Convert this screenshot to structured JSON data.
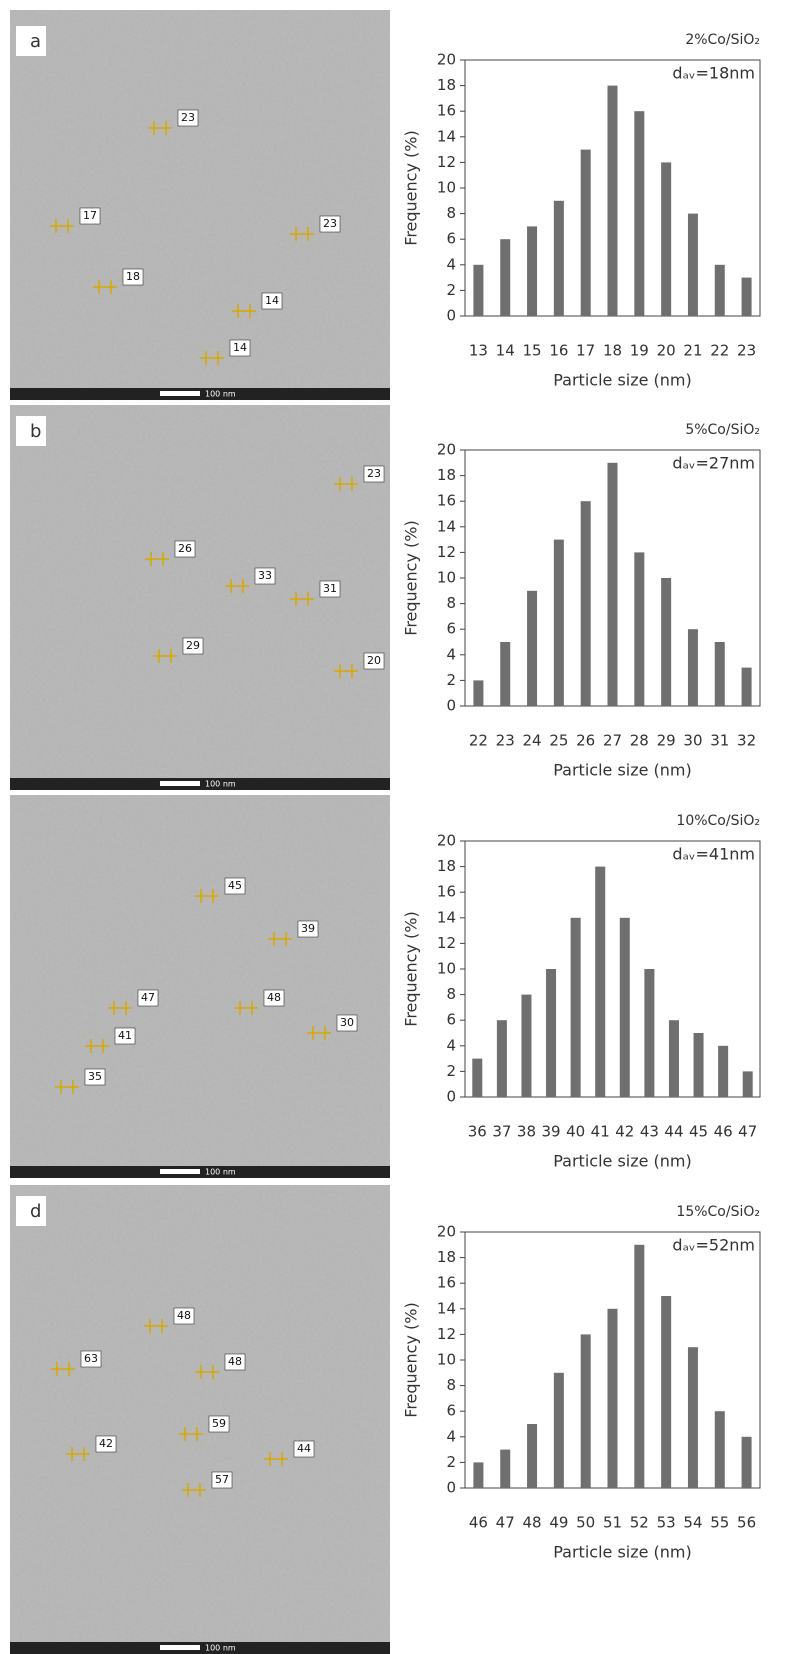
{
  "panels": [
    {
      "letter": "a",
      "scale_bar": "100 nm",
      "particle_labels": [
        23,
        17,
        23,
        18,
        14,
        14
      ]
    },
    {
      "letter": "b",
      "scale_bar": "100 nm",
      "particle_labels": [
        23,
        26,
        33,
        31,
        29,
        20
      ]
    },
    {
      "scale_bar": "100 nm",
      "particle_labels": [
        45,
        39,
        47,
        48,
        41,
        30,
        35
      ]
    },
    {
      "letter": "d",
      "scale_bar": "100 nm",
      "particle_labels": [
        48,
        63,
        48,
        59,
        42,
        44,
        57
      ]
    }
  ],
  "chart_data": [
    {
      "type": "bar",
      "title": "2%Co/SiO₂",
      "annotation": "dₐᵥ=18nm",
      "x_label": "Particle size (nm)",
      "y_label": "Frequency (%)",
      "categories": [
        "13",
        "14",
        "15",
        "16",
        "17",
        "18",
        "19",
        "20",
        "21",
        "22",
        "23"
      ],
      "values": [
        4,
        6,
        7,
        9,
        13,
        18,
        16,
        12,
        8,
        4,
        3
      ],
      "color": "#6f6f6f",
      "ylim": [
        0,
        20
      ],
      "yticks": [
        0,
        2,
        4,
        6,
        8,
        10,
        12,
        14,
        16,
        18,
        20
      ]
    },
    {
      "type": "bar",
      "title": "5%Co/SiO₂",
      "annotation": "dₐᵥ=27nm",
      "x_label": "Particle size (nm)",
      "y_label": "Frequency (%)",
      "categories": [
        "22",
        "23",
        "24",
        "25",
        "26",
        "27",
        "28",
        "29",
        "30",
        "31",
        "32"
      ],
      "values": [
        2,
        5,
        9,
        13,
        16,
        19,
        12,
        10,
        6,
        5,
        3
      ],
      "color": "#6f6f6f",
      "ylim": [
        0,
        20
      ],
      "yticks": [
        0,
        2,
        4,
        6,
        8,
        10,
        12,
        14,
        16,
        18,
        20
      ]
    },
    {
      "type": "bar",
      "title": "10%Co/SiO₂",
      "annotation": "dₐᵥ=41nm",
      "x_label": "Particle size (nm)",
      "y_label": "Frequency (%)",
      "categories": [
        "36",
        "37",
        "38",
        "39",
        "40",
        "41",
        "42",
        "43",
        "44",
        "45",
        "46",
        "47"
      ],
      "values": [
        3,
        6,
        8,
        10,
        14,
        18,
        14,
        10,
        6,
        5,
        4,
        2
      ],
      "color": "#6f6f6f",
      "ylim": [
        0,
        20
      ],
      "yticks": [
        0,
        2,
        4,
        6,
        8,
        10,
        12,
        14,
        16,
        18,
        20
      ]
    },
    {
      "type": "bar",
      "title": "15%Co/SiO₂",
      "annotation": "dₐᵥ=52nm",
      "x_label": "Particle size (nm)",
      "y_label": "Frequency (%)",
      "categories": [
        "46",
        "47",
        "48",
        "49",
        "50",
        "51",
        "52",
        "53",
        "54",
        "55",
        "56"
      ],
      "values": [
        2,
        3,
        5,
        9,
        12,
        14,
        19,
        15,
        11,
        6,
        4
      ],
      "color": "#6f6f6f",
      "ylim": [
        0,
        20
      ],
      "yticks": [
        0,
        2,
        4,
        6,
        8,
        10,
        12,
        14,
        16,
        18,
        20
      ]
    }
  ]
}
